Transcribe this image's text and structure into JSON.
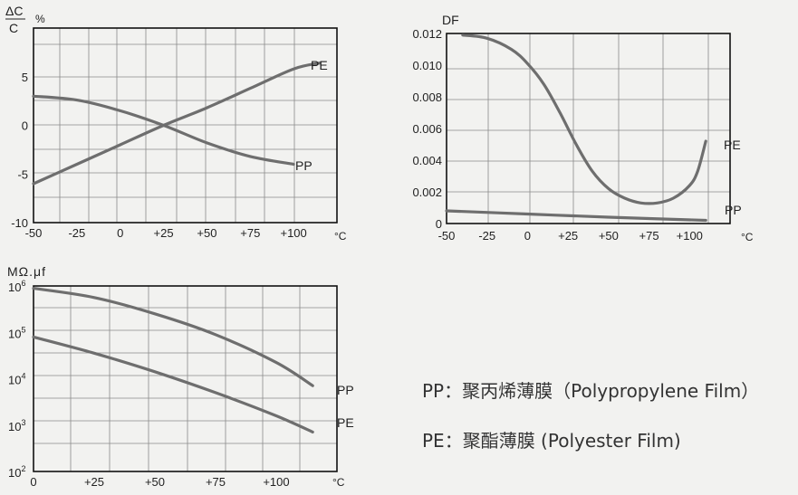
{
  "colors": {
    "curve": "#6e6e6e",
    "grid": "#8a8a8a",
    "frame": "#111111",
    "text": "#222222"
  },
  "chart_data": [
    {
      "type": "line",
      "ylabel_top": "ΔC",
      "ylabel_bottom": "C",
      "yunit": "%",
      "xunit": "°C",
      "xlim": [
        -50,
        125
      ],
      "ylim": [
        -10,
        10
      ],
      "x_ticks": [
        "-50",
        "-25",
        "0",
        "+25",
        "+50",
        "+75",
        "+100"
      ],
      "x_tick_values": [
        -50,
        -25,
        0,
        25,
        50,
        75,
        100
      ],
      "y_ticks": [
        "5",
        "0",
        "-5",
        "-10"
      ],
      "y_tick_values": [
        5,
        0,
        -5,
        -10
      ],
      "series": [
        {
          "name": "PE",
          "x": [
            -50,
            -25,
            0,
            25,
            50,
            75,
            100,
            115
          ],
          "y": [
            -6.0,
            -4.0,
            -2.0,
            0.0,
            1.8,
            3.8,
            5.8,
            6.4
          ]
        },
        {
          "name": "PP",
          "x": [
            -50,
            -25,
            0,
            25,
            50,
            75,
            100
          ],
          "y": [
            3.0,
            2.6,
            1.5,
            0.0,
            -1.8,
            -3.2,
            -4.0
          ]
        }
      ]
    },
    {
      "type": "line",
      "ylabel": "DF",
      "xunit": "°C",
      "xlim": [
        -50,
        125
      ],
      "ylim": [
        0,
        0.012
      ],
      "x_ticks": [
        "-50",
        "-25",
        "0",
        "+25",
        "+50",
        "+75",
        "+100"
      ],
      "x_tick_values": [
        -50,
        -25,
        0,
        25,
        50,
        75,
        100
      ],
      "y_ticks": [
        "0.012",
        "0.010",
        "0.008",
        "0.006",
        "0.004",
        "0.002",
        "0"
      ],
      "y_tick_values": [
        0.012,
        0.01,
        0.008,
        0.006,
        0.004,
        0.002,
        0
      ],
      "series": [
        {
          "name": "PE",
          "x": [
            -40,
            -25,
            -10,
            0,
            10,
            20,
            30,
            40,
            50,
            60,
            70,
            80,
            90,
            100,
            105,
            110
          ],
          "y": [
            0.0119,
            0.0117,
            0.011,
            0.0101,
            0.0088,
            0.007,
            0.005,
            0.0033,
            0.0022,
            0.0016,
            0.0013,
            0.0013,
            0.0016,
            0.0024,
            0.0033,
            0.0052
          ]
        },
        {
          "name": "PP",
          "x": [
            -50,
            0,
            50,
            110
          ],
          "y": [
            0.0008,
            0.0006,
            0.0004,
            0.0002
          ]
        }
      ]
    },
    {
      "type": "line",
      "ylabel": "MΩ.μf",
      "xunit": "°C",
      "xlim": [
        0,
        125
      ],
      "yscale": "log",
      "ylim_log": [
        2,
        6
      ],
      "x_ticks": [
        "0",
        "+25",
        "+50",
        "+75",
        "+100"
      ],
      "x_tick_values": [
        0,
        25,
        50,
        75,
        100
      ],
      "y_ticks": [
        {
          "base": "10",
          "exp": "6"
        },
        {
          "base": "10",
          "exp": "5"
        },
        {
          "base": "10",
          "exp": "4"
        },
        {
          "base": "10",
          "exp": "3"
        },
        {
          "base": "10",
          "exp": "2"
        }
      ],
      "y_tick_values": [
        6,
        5,
        4,
        3,
        2
      ],
      "series": [
        {
          "name": "PP",
          "x": [
            0,
            25,
            50,
            75,
            100,
            115
          ],
          "y_log10": [
            5.95,
            5.75,
            5.4,
            4.95,
            4.35,
            3.85
          ]
        },
        {
          "name": "PE",
          "x": [
            0,
            25,
            50,
            75,
            100,
            115
          ],
          "y_log10": [
            4.9,
            4.55,
            4.15,
            3.7,
            3.2,
            2.85
          ]
        }
      ]
    }
  ],
  "legend": {
    "pp": "PP：聚丙烯薄膜（Polypropylene Film）",
    "pe": "PE：聚酯薄膜  (Polyester Film)"
  }
}
